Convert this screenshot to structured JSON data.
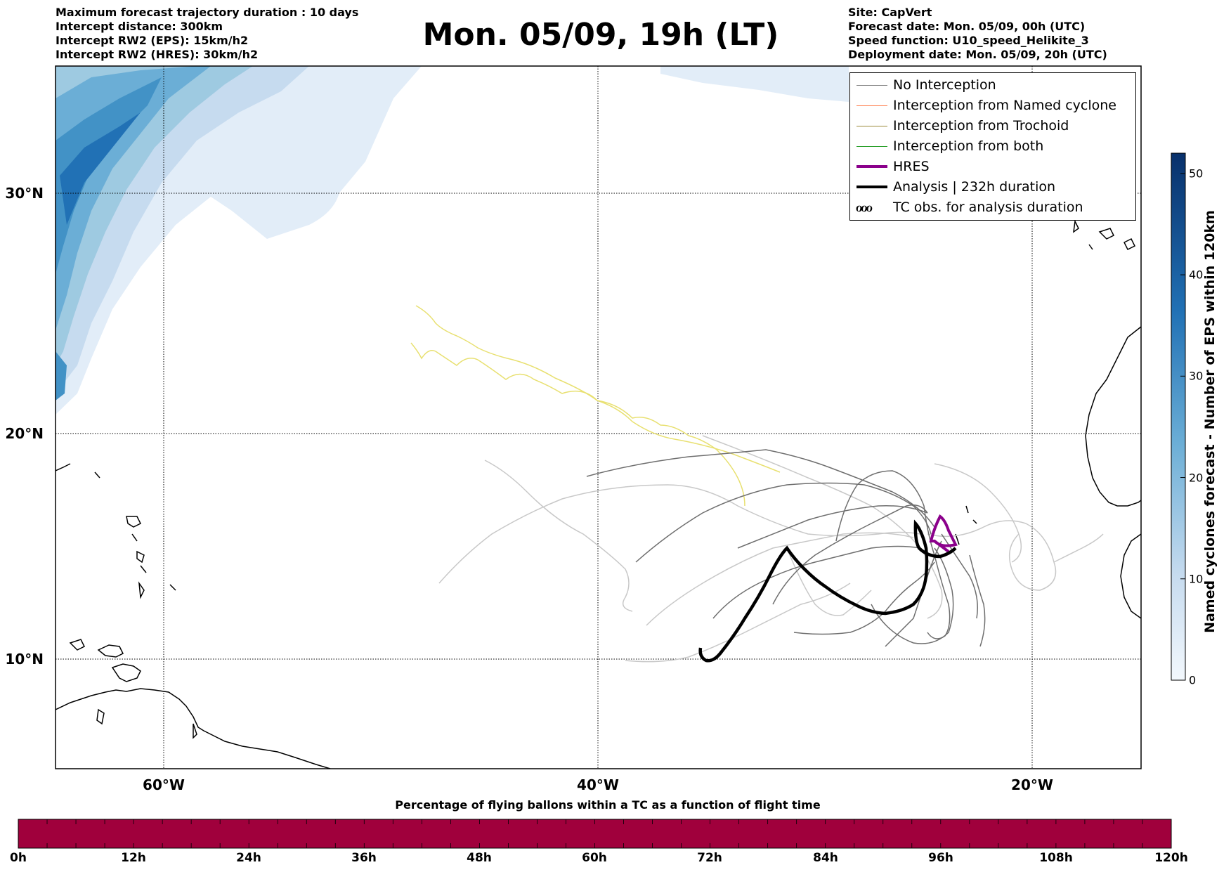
{
  "header": {
    "left_lines": [
      "Maximum forecast trajectory duration : 10 days",
      "Intercept distance: 300km",
      "Intercept RW2 (EPS):  15km/h2",
      "Intercept RW2 (HRES): 30km/h2"
    ],
    "title": "Mon. 05/09, 19h (LT)",
    "right_lines": [
      "Site: CapVert",
      "Forecast date: Mon. 05/09, 00h (UTC)",
      "Speed function: U10_speed_Helikite_3",
      "Deployment date: Mon. 05/09, 20h (UTC)"
    ]
  },
  "map": {
    "lat_labels": [
      "30°N",
      "20°N",
      "10°N"
    ],
    "lon_labels": [
      "60°W",
      "40°W",
      "20°W"
    ],
    "colors": {
      "no_interception": "#808080",
      "named_cyclone": "#ff7f50",
      "trochoid": "#9a8a3a",
      "both": "#2ca02c",
      "hres": "#8b008b",
      "analysis": "#000000",
      "forecast_track": "#e8e070"
    }
  },
  "legend": {
    "items": [
      {
        "label": "No Interception",
        "color": "#808080",
        "icon": "line"
      },
      {
        "label": "Interception from Named cyclone",
        "color": "#ff7f50",
        "icon": "line"
      },
      {
        "label": "Interception from Trochoid",
        "color": "#9a8a3a",
        "icon": "line"
      },
      {
        "label": "Interception from both",
        "color": "#2ca02c",
        "icon": "line"
      },
      {
        "label": "HRES",
        "color": "#8b008b",
        "icon": "thick-line"
      },
      {
        "label": "Analysis | 232h duration",
        "color": "#000000",
        "icon": "thick-line"
      },
      {
        "label": "TC obs. for analysis duration",
        "color": "#000000",
        "icon": "cyclone-symbols"
      }
    ]
  },
  "colorbar": {
    "title": "Named cyclones forecast - Number of EPS within 120km",
    "ticks": [
      "0",
      "10",
      "20",
      "30",
      "40",
      "50"
    ],
    "max": 52
  },
  "bottom_bar": {
    "title": "Percentage of flying ballons within a TC as a function of flight time",
    "ticks": [
      "0h",
      "12h",
      "24h",
      "36h",
      "48h",
      "60h",
      "72h",
      "84h",
      "96h",
      "108h",
      "120h"
    ],
    "fill_color": "#a0003c"
  }
}
